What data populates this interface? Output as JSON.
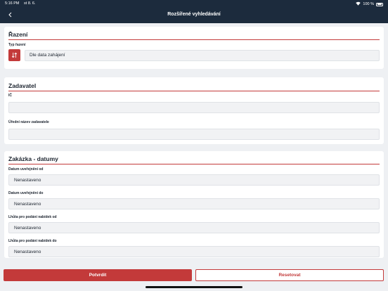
{
  "status_bar": {
    "time": "5:16 PM",
    "date": "st 8. 6.",
    "battery": "100 %"
  },
  "nav": {
    "title": "Rozšířené vyhledávání"
  },
  "sorting": {
    "title": "Řazení",
    "type_label": "Typ řazení",
    "value": "Dle data zahájení"
  },
  "contracting": {
    "title": "Zadavatel",
    "ic_label": "IČ",
    "ic_value": "",
    "name_label": "Úřední název zadavatele",
    "name_value": ""
  },
  "dates": {
    "title": "Zakázka - datumy",
    "fields": [
      {
        "label": "Datum uveřejnění od",
        "value": "Nenastaveno"
      },
      {
        "label": "Datum uveřejnění do",
        "value": "Nenastaveno"
      },
      {
        "label": "Lhůta pro podání nabídek od",
        "value": "Nenastaveno"
      },
      {
        "label": "Lhůta pro podání nabídek do",
        "value": "Nenastaveno"
      }
    ]
  },
  "buttons": {
    "confirm": "Potvrdit",
    "reset": "Resetovat"
  },
  "colors": {
    "header": "#1c2b3d",
    "accent": "#c33a3a",
    "background": "#eef0f3"
  }
}
